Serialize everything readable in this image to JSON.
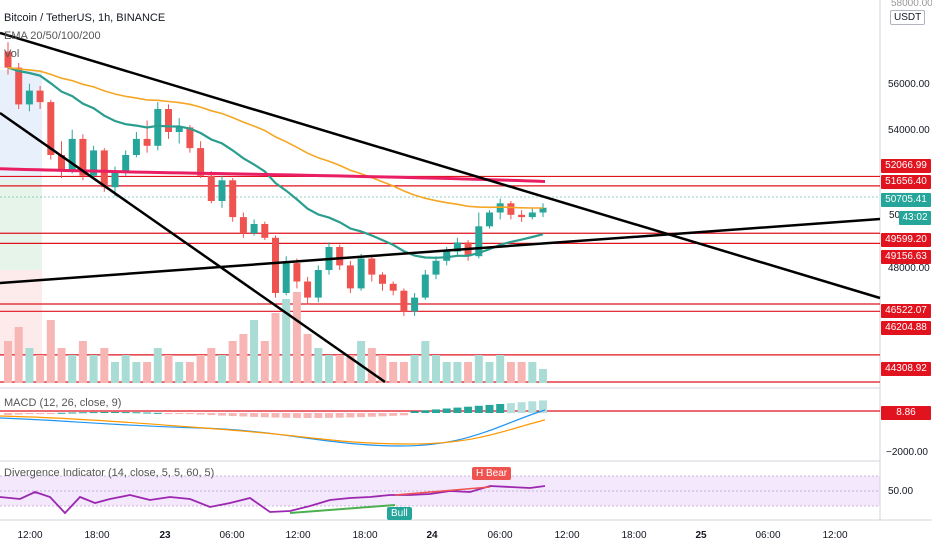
{
  "header": {
    "title": "Bitcoin / TetherUS, 1h, BINANCE",
    "ema_label": "EMA 20/50/100/200",
    "vol_label": "Vol",
    "currency": "USDT",
    "top_price": "58000.00"
  },
  "price_axis": {
    "ticks": [
      "56000.00",
      "54000.00",
      "48000.00"
    ],
    "partial_tick": "50",
    "price_labels": [
      {
        "text": "52066.99",
        "color": "red",
        "y": 52066.99
      },
      {
        "text": "51656.40",
        "color": "red",
        "y": 51656.4
      },
      {
        "text": "50705.41",
        "color": "teal",
        "y": 50705.41
      },
      {
        "text": "43:02",
        "color": "teal",
        "y": 50200
      },
      {
        "text": "49599.20",
        "color": "red",
        "y": 49599.2
      },
      {
        "text": "49156.63",
        "color": "red",
        "y": 49156.63
      },
      {
        "text": "46522.07",
        "color": "red",
        "y": 46522.07
      },
      {
        "text": "46204.88",
        "color": "red",
        "y": 46204.88
      },
      {
        "text": "44308.92",
        "color": "red",
        "y": 44308.92
      }
    ]
  },
  "macd": {
    "label": "MACD (12, 26, close, 9)",
    "value": "8.86",
    "axis_tick": "−2000.00"
  },
  "divergence": {
    "label": "Divergence Indicator (14, close, 5, 5, 60, 5)",
    "value": "50.00",
    "bear_tag": "H Bear",
    "bull_tag": "Bull"
  },
  "time_axis": [
    {
      "text": "12:00",
      "bold": false
    },
    {
      "text": "18:00",
      "bold": false
    },
    {
      "text": "23",
      "bold": true
    },
    {
      "text": "06:00",
      "bold": false
    },
    {
      "text": "12:00",
      "bold": false
    },
    {
      "text": "18:00",
      "bold": false
    },
    {
      "text": "24",
      "bold": true
    },
    {
      "text": "06:00",
      "bold": false
    },
    {
      "text": "12:00",
      "bold": false
    },
    {
      "text": "18:00",
      "bold": false
    },
    {
      "text": "25",
      "bold": true
    },
    {
      "text": "06:00",
      "bold": false
    },
    {
      "text": "12:00",
      "bold": false
    }
  ],
  "colors": {
    "up": "#26a69a",
    "down": "#ef5350",
    "ema20": "#2a9d8f",
    "ema50": "#f5a623",
    "ema200": "#e91e63",
    "level": "#e0131f",
    "trend": "#000000"
  },
  "chart_data": {
    "type": "candlestick",
    "price_range": [
      43500,
      58000
    ],
    "candles": [
      [
        57500,
        56800,
        57900,
        56500
      ],
      [
        56800,
        55200,
        57000,
        55000
      ],
      [
        55200,
        55800,
        56100,
        54900
      ],
      [
        55800,
        55300,
        56000,
        55000
      ],
      [
        55300,
        53000,
        55400,
        52800
      ],
      [
        53000,
        52300,
        53600,
        52000
      ],
      [
        52300,
        53700,
        54100,
        52200
      ],
      [
        53700,
        52100,
        53900,
        51900
      ],
      [
        52100,
        53200,
        53400,
        52000
      ],
      [
        53200,
        51600,
        53300,
        51400
      ],
      [
        51600,
        52300,
        52500,
        51200
      ],
      [
        52300,
        53000,
        53200,
        52100
      ],
      [
        53000,
        53700,
        54000,
        52900
      ],
      [
        53700,
        53400,
        54500,
        53100
      ],
      [
        53400,
        55000,
        55300,
        53200
      ],
      [
        55000,
        54000,
        55200,
        53700
      ],
      [
        54000,
        54200,
        54600,
        53500
      ],
      [
        54200,
        53300,
        54300,
        53100
      ],
      [
        53300,
        52100,
        53600,
        52000
      ],
      [
        52100,
        51000,
        52300,
        50900
      ],
      [
        51000,
        51900,
        52100,
        50700
      ],
      [
        51900,
        50300,
        52000,
        50100
      ],
      [
        50300,
        49600,
        50500,
        49400
      ],
      [
        49600,
        50000,
        50200,
        49500
      ],
      [
        50000,
        49400,
        50100,
        49300
      ],
      [
        49400,
        47000,
        49500,
        46800
      ],
      [
        47000,
        48300,
        48600,
        46900
      ],
      [
        48300,
        47500,
        48500,
        47200
      ],
      [
        47500,
        46800,
        47700,
        46500
      ],
      [
        46800,
        48000,
        48200,
        46600
      ],
      [
        48000,
        49000,
        49200,
        47800
      ],
      [
        49000,
        48200,
        49100,
        48000
      ],
      [
        48200,
        47200,
        48400,
        47000
      ],
      [
        47200,
        48500,
        48700,
        47100
      ],
      [
        48500,
        47800,
        48600,
        47500
      ],
      [
        47800,
        47400,
        47900,
        47100
      ],
      [
        47400,
        47100,
        47500,
        46900
      ],
      [
        47100,
        46200,
        47200,
        46000
      ],
      [
        46200,
        46800,
        47000,
        46000
      ],
      [
        46800,
        47800,
        48000,
        46700
      ],
      [
        47800,
        48400,
        48600,
        47600
      ],
      [
        48400,
        48800,
        49000,
        48200
      ],
      [
        48800,
        49200,
        49400,
        48600
      ],
      [
        49200,
        48600,
        49300,
        48400
      ],
      [
        48600,
        49900,
        50500,
        48500
      ],
      [
        49900,
        50500,
        50600,
        49800
      ],
      [
        50500,
        50900,
        51100,
        50200
      ],
      [
        50900,
        50400,
        51000,
        50200
      ],
      [
        50400,
        50300,
        50600,
        50100
      ],
      [
        50300,
        50500,
        50700,
        50200
      ],
      [
        50500,
        50705,
        50900,
        50300
      ]
    ],
    "volumes": [
      6,
      8,
      5,
      4,
      9,
      5,
      4,
      6,
      4,
      5,
      3,
      4,
      3,
      3,
      5,
      4,
      3,
      3,
      4,
      5,
      4,
      6,
      7,
      9,
      6,
      10,
      12,
      13,
      7,
      5,
      4,
      4,
      4,
      6,
      5,
      4,
      3,
      3,
      4,
      6,
      4,
      3,
      3,
      3,
      4,
      3,
      4,
      3,
      3,
      3,
      2
    ]
  }
}
